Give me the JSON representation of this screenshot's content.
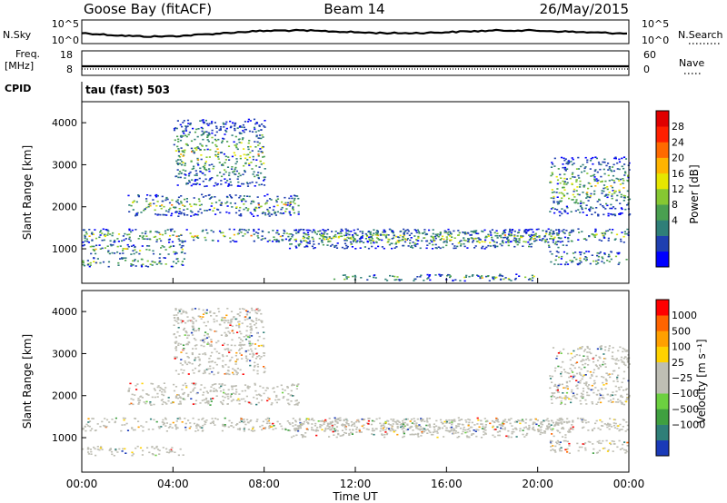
{
  "header": {
    "station": "Goose Bay (fitACF)",
    "beam": "Beam 14",
    "date": "26/May/2015"
  },
  "summary_panels": {
    "nsky": {
      "label": "N.Sky",
      "ticks": [
        "10^5",
        "10^0"
      ],
      "right_label": "N.Search",
      "right_ticks": [
        "10^5",
        "10^0"
      ]
    },
    "freq": {
      "label_line1": "Freq.",
      "label_line2": "[MHz]",
      "ticks": [
        "18",
        "8"
      ],
      "right_label": "Nave",
      "right_ticks": [
        "60",
        "0"
      ]
    },
    "cpid": {
      "label": "CPID",
      "value": "tau (fast) 503"
    }
  },
  "chart_data": [
    {
      "type": "heatmap",
      "panel": "power",
      "ylabel": "Slant Range [km]",
      "yticks": [
        "4000",
        "3000",
        "2000",
        "1000"
      ],
      "yrange": [
        180,
        4500
      ],
      "xrange_hours": [
        0,
        24
      ],
      "colorbar": {
        "label": "Power [dB]",
        "ticks": [
          "28",
          "24",
          "20",
          "16",
          "12",
          "8",
          "4"
        ],
        "colors": [
          "#0000ff",
          "#1f3fb0",
          "#2f7f78",
          "#4aa050",
          "#86c832",
          "#e6e600",
          "#ffb400",
          "#ff6a00",
          "#ff2000",
          "#e00000"
        ]
      },
      "scatter_regions": [
        {
          "from_h": 0.0,
          "to_h": 24.0,
          "center_km": 1330,
          "half_km": 160
        },
        {
          "from_h": 0.0,
          "to_h": 4.5,
          "center_km": 1000,
          "half_km": 120
        },
        {
          "from_h": 0.0,
          "to_h": 4.5,
          "center_km": 700,
          "half_km": 110
        },
        {
          "from_h": 2.0,
          "to_h": 9.5,
          "center_km": 2050,
          "half_km": 260
        },
        {
          "from_h": 4.0,
          "to_h": 8.0,
          "center_km": 3300,
          "half_km": 800
        },
        {
          "from_h": 9.0,
          "to_h": 21.5,
          "center_km": 1250,
          "half_km": 230
        },
        {
          "from_h": 11.0,
          "to_h": 20.0,
          "center_km": 330,
          "half_km": 80
        },
        {
          "from_h": 20.5,
          "to_h": 24.0,
          "center_km": 2500,
          "half_km": 700
        },
        {
          "from_h": 20.5,
          "to_h": 24.0,
          "center_km": 800,
          "half_km": 160
        }
      ]
    },
    {
      "type": "heatmap",
      "panel": "velocity",
      "ylabel": "Slant Range [km]",
      "yticks": [
        "4000",
        "3000",
        "2000",
        "1000"
      ],
      "yrange": [
        180,
        4500
      ],
      "xrange_hours": [
        0,
        24
      ],
      "xticks": [
        "00:00",
        "04:00",
        "08:00",
        "12:00",
        "16:00",
        "20:00",
        "00:00"
      ],
      "xlabel": "Time UT",
      "colorbar": {
        "label": "Velocity [m s⁻¹]",
        "ticks": [
          "1000",
          "500",
          "100",
          "25",
          "−25",
          "−100",
          "−500",
          "−1000"
        ],
        "colors": [
          "#1a3ab8",
          "#2f7f78",
          "#3fa040",
          "#6cd040",
          "#bebeb4",
          "#bebeb4",
          "#ffd200",
          "#ffa000",
          "#ff6400",
          "#ff0000"
        ]
      },
      "scatter_regions": [
        {
          "from_h": 0.0,
          "to_h": 24.0,
          "center_km": 1330,
          "half_km": 160
        },
        {
          "from_h": 0.0,
          "to_h": 4.5,
          "center_km": 700,
          "half_km": 110
        },
        {
          "from_h": 2.0,
          "to_h": 9.5,
          "center_km": 2050,
          "half_km": 260
        },
        {
          "from_h": 4.0,
          "to_h": 8.0,
          "center_km": 3300,
          "half_km": 800
        },
        {
          "from_h": 9.0,
          "to_h": 21.5,
          "center_km": 1250,
          "half_km": 230
        },
        {
          "from_h": 20.5,
          "to_h": 24.0,
          "center_km": 2500,
          "half_km": 700
        },
        {
          "from_h": 20.5,
          "to_h": 24.0,
          "center_km": 800,
          "half_km": 160
        }
      ]
    }
  ]
}
